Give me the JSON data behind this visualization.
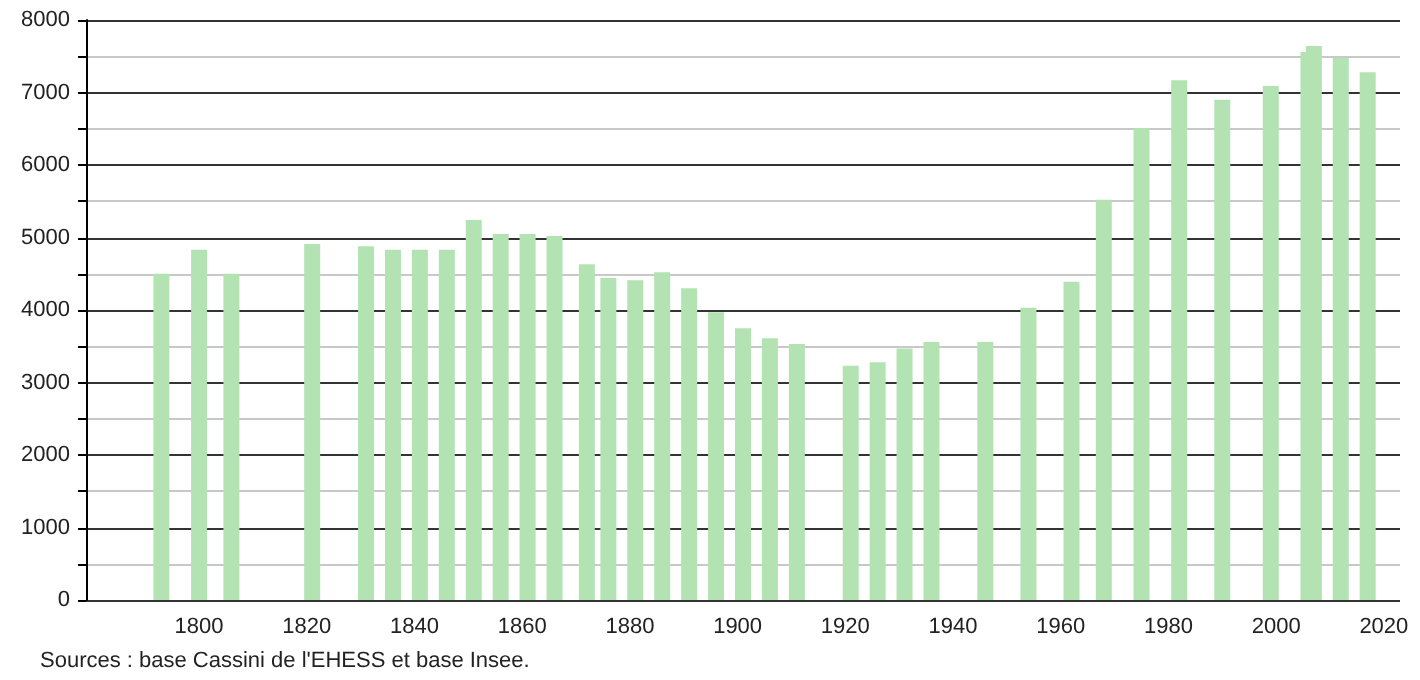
{
  "chart_data": {
    "type": "bar",
    "x": [
      1793,
      1800,
      1806,
      1821,
      1831,
      1836,
      1841,
      1846,
      1851,
      1856,
      1861,
      1866,
      1872,
      1876,
      1881,
      1886,
      1891,
      1896,
      1901,
      1906,
      1911,
      1921,
      1926,
      1931,
      1936,
      1946,
      1954,
      1962,
      1968,
      1975,
      1982,
      1990,
      1999,
      2006,
      2007,
      2012,
      2017
    ],
    "values": [
      4500,
      4830,
      4500,
      4910,
      4880,
      4830,
      4830,
      4830,
      5240,
      5050,
      5050,
      5020,
      4630,
      4440,
      4410,
      4520,
      4300,
      3970,
      3750,
      3610,
      3530,
      3230,
      3280,
      3470,
      3560,
      3560,
      4030,
      4390,
      5520,
      6510,
      7170,
      6900,
      7090,
      7560,
      7640,
      7480,
      7280
    ],
    "color": "#b3e3b3",
    "xlim": [
      1779,
      2023
    ],
    "xticks": [
      1800,
      1820,
      1840,
      1860,
      1880,
      1900,
      1920,
      1940,
      1960,
      1980,
      2000,
      2020
    ],
    "ylim": [
      0,
      8000
    ],
    "yticks": [
      0,
      {
        "value": 500,
        "label": null
      },
      1000,
      {
        "value": 1500,
        "label": null
      },
      2000,
      {
        "value": 2500,
        "label": null
      },
      3000,
      {
        "value": 3500,
        "label": null
      },
      4000,
      {
        "value": 4500,
        "label": null
      },
      5000,
      {
        "value": 5500,
        "label": null
      },
      6000,
      {
        "value": 6500,
        "label": null
      },
      7000,
      {
        "value": 7500,
        "label": null
      },
      8000
    ],
    "grid": "y",
    "annotations": [
      "Sources : base Cassini de l'EHESS et base Insee."
    ]
  }
}
